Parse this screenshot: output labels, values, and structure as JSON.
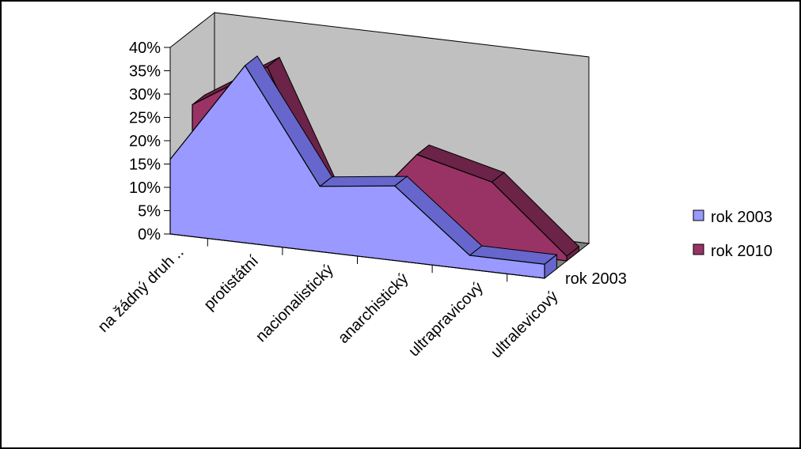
{
  "chart_data": {
    "type": "area",
    "style": "3d",
    "title": "",
    "xlabel": "",
    "ylabel": "",
    "categories": [
      "na žádný druh ..",
      "protistátní",
      "nacionalistický",
      "anarchistický",
      "ultrapravicový",
      "ultralevicový"
    ],
    "y_ticks": [
      "0%",
      "5%",
      "10%",
      "15%",
      "20%",
      "25%",
      "30%",
      "35%",
      "40%"
    ],
    "ylim": [
      0,
      40
    ],
    "grid": false,
    "legend_position": "right",
    "depth_axis_label": "rok 2003",
    "series": [
      {
        "name": "rok 2003",
        "color": "#9999ff",
        "values": [
          16,
          38,
          14,
          16,
          3,
          3
        ]
      },
      {
        "name": "rok 2010",
        "color": "#993366",
        "values": [
          24,
          34,
          1,
          19,
          15,
          1
        ]
      }
    ],
    "colors": {
      "wall": "#c0c0c0",
      "floor": "#808080",
      "frame": "#000000"
    }
  }
}
